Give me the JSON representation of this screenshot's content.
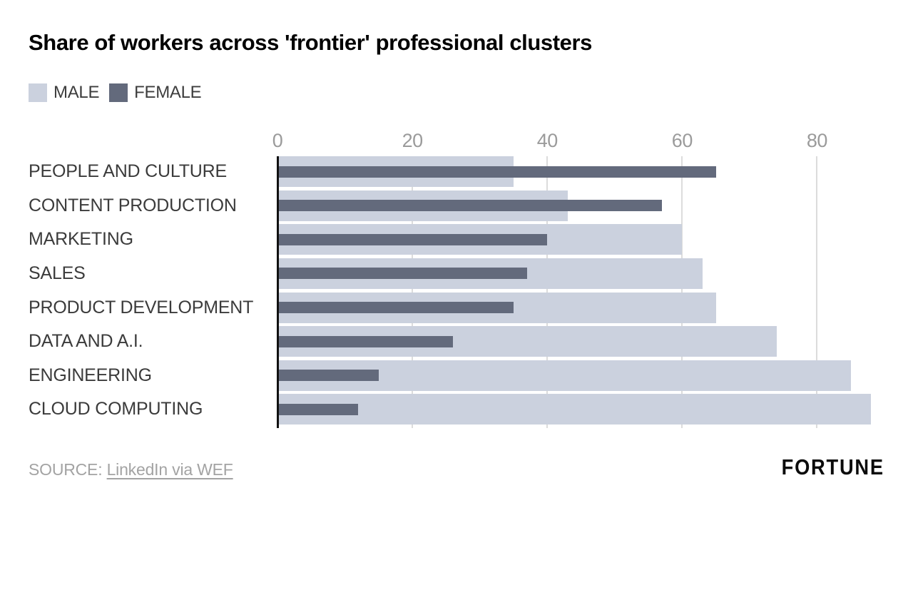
{
  "title": "Share of workers across 'frontier' professional clusters",
  "legend": {
    "items": [
      {
        "label": "MALE",
        "color": "#cbd1de"
      },
      {
        "label": "FEMALE",
        "color": "#636a7c"
      }
    ]
  },
  "chart_data": {
    "type": "bar",
    "orientation": "horizontal",
    "title": "Share of workers across 'frontier' professional clusters",
    "units": "percent share of workers",
    "categories": [
      "PEOPLE AND CULTURE",
      "CONTENT PRODUCTION",
      "MARKETING",
      "SALES",
      "PRODUCT DEVELOPMENT",
      "DATA AND A.I.",
      "ENGINEERING",
      "CLOUD COMPUTING"
    ],
    "series": [
      {
        "name": "MALE",
        "color": "#cbd1de",
        "values": [
          35,
          43,
          60,
          63,
          65,
          74,
          85,
          88
        ]
      },
      {
        "name": "FEMALE",
        "color": "#636a7c",
        "values": [
          65,
          57,
          40,
          37,
          35,
          26,
          15,
          12
        ]
      }
    ],
    "x_ticks": [
      0,
      20,
      40,
      60,
      80
    ],
    "xlim": [
      0,
      90
    ],
    "grid": true,
    "legend_position": "top-left"
  },
  "footer": {
    "source_prefix": "SOURCE: ",
    "source_link": "LinkedIn via WEF",
    "brand": "FORTUNE"
  },
  "colors": {
    "male_bar": "#cbd1de",
    "female_bar": "#636a7c",
    "gridline": "#dcdcdc",
    "axis_line": "#111111",
    "tick_text": "#9b9b9b",
    "category_text": "#3b3b3b",
    "source_text": "#a3a3a3",
    "title_text": "#000000"
  }
}
